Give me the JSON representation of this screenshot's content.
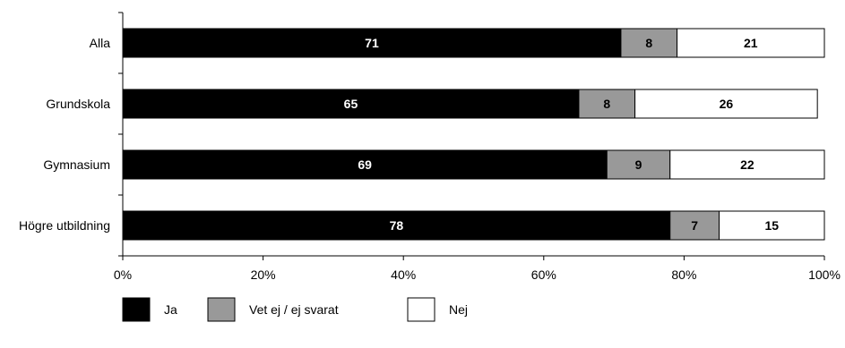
{
  "chart_data": {
    "type": "bar",
    "orientation": "horizontal",
    "stacked": true,
    "categories": [
      "Alla",
      "Grundskola",
      "Gymnasium",
      "Högre utbildning"
    ],
    "series": [
      {
        "name": "Ja",
        "values": [
          71,
          65,
          69,
          78
        ],
        "color": "#000000",
        "label_color": "#ffffff"
      },
      {
        "name": "Vet ej / ej svarat",
        "values": [
          8,
          8,
          9,
          7
        ],
        "color": "#999999",
        "label_color": "#000000"
      },
      {
        "name": "Nej",
        "values": [
          21,
          26,
          22,
          15
        ],
        "color": "#ffffff",
        "label_color": "#000000"
      }
    ],
    "xlim": [
      0,
      100
    ],
    "xticks": [
      0,
      20,
      40,
      60,
      80,
      100
    ],
    "xtick_labels": [
      "0%",
      "20%",
      "40%",
      "60%",
      "80%",
      "100%"
    ],
    "grid": false,
    "legend_position": "bottom-left",
    "title": "",
    "xlabel": "",
    "ylabel": ""
  }
}
